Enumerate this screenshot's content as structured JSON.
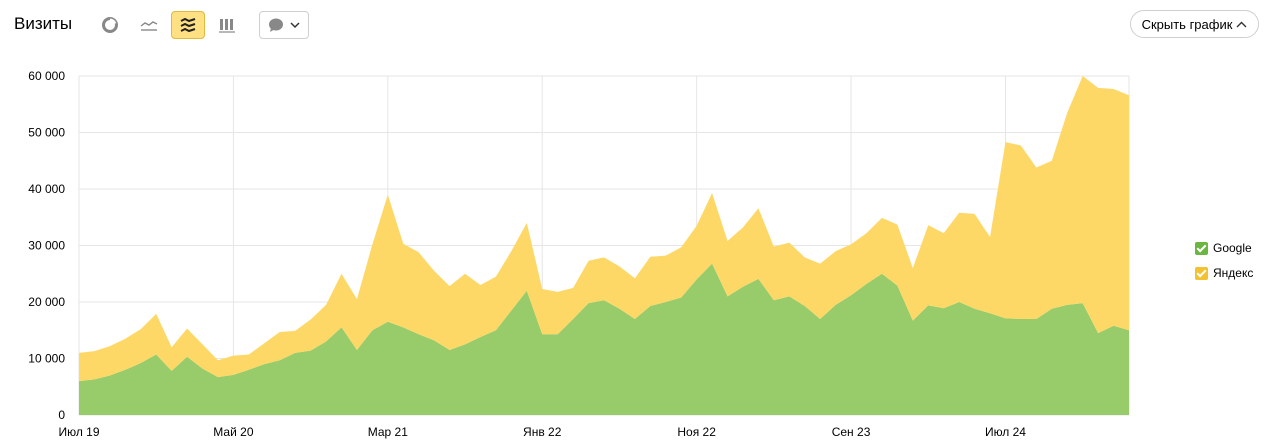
{
  "header": {
    "title": "Визиты",
    "hide_button_label": "Скрыть график"
  },
  "toolbar": {
    "icons": [
      "pie-chart-icon",
      "line-chart-icon",
      "stacked-area-icon",
      "bar-chart-icon"
    ],
    "active": "stacked-area-icon",
    "annotation_icon": "speech-bubble-icon"
  },
  "colors": {
    "google": "#98cb6a",
    "yandex": "#fed867",
    "google_check": "#6bb543",
    "yandex_check": "#f2c230",
    "active_tool_bg": "#ffe082",
    "grid": "#e6e6e6"
  },
  "legend": {
    "items": [
      {
        "label": "Google",
        "color": "#6bb543"
      },
      {
        "label": "Яндекс",
        "color": "#f2c230"
      }
    ]
  },
  "chart_data": {
    "type": "area",
    "stacked": true,
    "title": "",
    "xlabel": "",
    "ylabel": "",
    "ylim": [
      0,
      60000
    ],
    "yticks": [
      0,
      10000,
      20000,
      30000,
      40000,
      50000,
      60000
    ],
    "ytick_labels": [
      "0",
      "10 000",
      "20 000",
      "30 000",
      "40 000",
      "50 000",
      "60 000"
    ],
    "x_tick_labels": [
      "Июл 19",
      "Май 20",
      "Мар 21",
      "Янв 22",
      "Ноя 22",
      "Сен 23",
      "Июл 24"
    ],
    "x_tick_index": [
      0,
      10,
      20,
      30,
      40,
      50,
      60
    ],
    "series": [
      {
        "name": "Google",
        "color": "#98cb6a",
        "values": [
          6000,
          6300,
          7000,
          8000,
          9200,
          10700,
          7800,
          10300,
          8200,
          6700,
          7100,
          8000,
          9000,
          9700,
          11000,
          11400,
          13000,
          15500,
          11500,
          15000,
          16500,
          15500,
          14300,
          13200,
          11500,
          12500,
          13800,
          15000,
          18500,
          22000,
          14300,
          14300,
          17000,
          19800,
          20300,
          18800,
          17000,
          19300,
          20000,
          20800,
          24000,
          26800,
          21000,
          22700,
          24100,
          20300,
          21000,
          19300,
          17000,
          19500,
          21200,
          23200,
          25000,
          22900,
          16700,
          19400,
          18900,
          20000,
          18800,
          18000,
          17100,
          17000,
          17000,
          18800,
          19500,
          19800,
          14500,
          15800,
          15000
        ]
      },
      {
        "name": "Яндекс",
        "color": "#fed867",
        "values": [
          5000,
          5000,
          5200,
          5500,
          6000,
          7200,
          4200,
          5000,
          4300,
          3000,
          3400,
          2700,
          3700,
          5000,
          3900,
          5500,
          6500,
          9500,
          9000,
          15200,
          22500,
          14800,
          14500,
          12300,
          11300,
          12500,
          9200,
          9500,
          10500,
          12000,
          8000,
          7500,
          5500,
          7500,
          7600,
          7500,
          7200,
          8700,
          8200,
          8900,
          9500,
          12500,
          9800,
          10500,
          12500,
          9500,
          9500,
          8600,
          9800,
          9500,
          9000,
          9000,
          9900,
          10800,
          9300,
          14200,
          13300,
          15800,
          16800,
          13500,
          31200,
          30700,
          26800,
          26200,
          34000,
          40200,
          43400,
          41900,
          41600
        ]
      }
    ]
  }
}
